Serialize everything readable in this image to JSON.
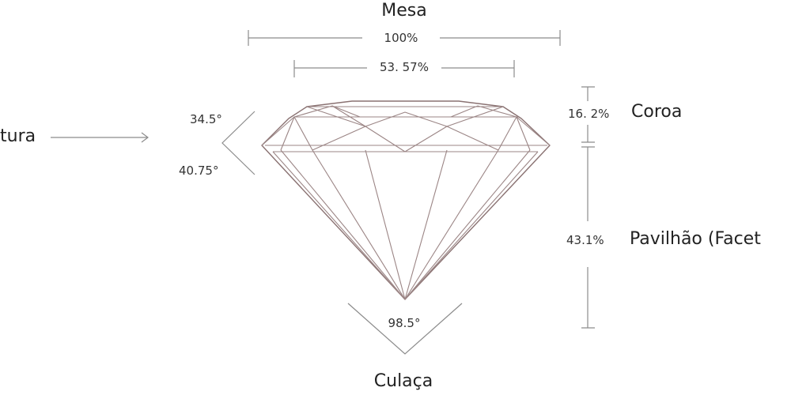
{
  "labels": {
    "table": "Mesa",
    "table_total": "100%",
    "table_pct": "53. 57%",
    "girdle": "tura",
    "crown_angle": "34.5°",
    "pavilion_angle": "40.75°",
    "crown_pct": "16. 2%",
    "crown": "Coroa",
    "pavilion_pct": "43.1%",
    "pavilion": "Pavilhão (Facet",
    "culet_angle": "98.5°",
    "culet": "Culaça"
  },
  "colors": {
    "outline": "#8a7272",
    "facet": "#9b8585",
    "dimension": "#8c8c8c",
    "text": "#2a2a2a"
  }
}
